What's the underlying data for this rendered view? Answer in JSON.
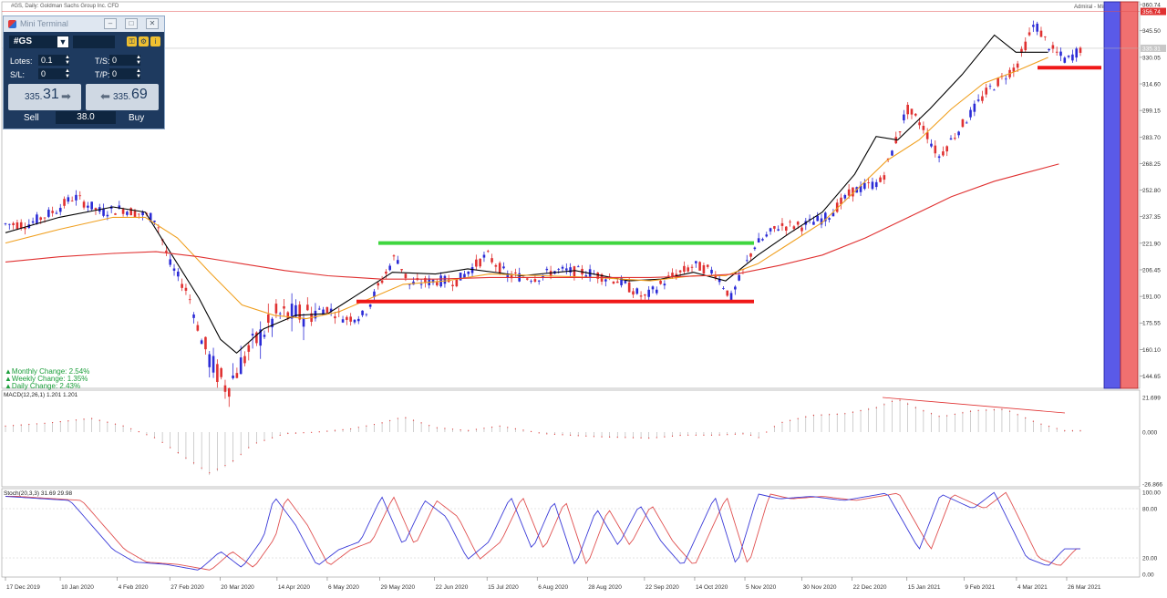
{
  "header": {
    "symbol_caption": "#GS, Daily:  Goldman Sachs Group Inc. CFD",
    "right_caption": "Admiral - Mini Terminal"
  },
  "mini_terminal": {
    "title": "Mini Terminal",
    "symbol": "#GS",
    "lots_label": "Lotes:",
    "lots_value": "0.1",
    "ts_label": "T/S:",
    "ts_value": "0",
    "sl_label": "S/L:",
    "sl_value": "0",
    "tp_label": "T/P:",
    "tp_value": "0",
    "sell_small": "335.",
    "sell_big": "31",
    "buy_small": "335.",
    "buy_big": "69",
    "sell_label": "Sell",
    "buy_label": "Buy",
    "volume": "38.0"
  },
  "changes": {
    "monthly": "▲Monthly Change: 2.54%",
    "weekly": "▲Weekly Change: 1.35%",
    "daily": "▲Daily Change: 2.43%"
  },
  "colors": {
    "bull": "#2b2bd6",
    "bear": "#e03131",
    "ma_fast": "#000000",
    "ma_mid": "#f0a020",
    "ma_slow": "#e03131",
    "resistance": "#3fd63f",
    "support": "#f01818",
    "stoch_main": "#3a3ad8",
    "stoch_signal": "#e05050",
    "band_blue": "#5a5ae8",
    "band_red": "#f07070"
  },
  "chart_data": [
    {
      "type": "candlestick",
      "symbol": "#GS",
      "timeframe": "Daily",
      "price_axis_ticks": [
        360.74,
        345.5,
        330.05,
        314.6,
        299.15,
        283.7,
        268.25,
        252.8,
        237.35,
        221.9,
        206.45,
        191.0,
        175.55,
        160.1,
        144.65
      ],
      "current_price": 335.31,
      "top_marker_price": 356.74,
      "x_tick_labels": [
        "17 Dec 2019",
        "10 Jan 2020",
        "4 Feb 2020",
        "27 Feb 2020",
        "20 Mar 2020",
        "14 Apr 2020",
        "6 May 2020",
        "29 May 2020",
        "22 Jun 2020",
        "15 Jul 2020",
        "6 Aug 2020",
        "28 Aug 2020",
        "22 Sep 2020",
        "14 Oct 2020",
        "5 Nov 2020",
        "30 Nov 2020",
        "22 Dec 2020",
        "15 Jan 2021",
        "9 Feb 2021",
        "4 Mar 2021",
        "26 Mar 2021"
      ],
      "close_path": [
        {
          "date": "2019-12-17",
          "close": 233
        },
        {
          "date": "2019-12-27",
          "close": 233
        },
        {
          "date": "2020-01-08",
          "close": 241
        },
        {
          "date": "2020-01-16",
          "close": 249
        },
        {
          "date": "2020-01-28",
          "close": 240
        },
        {
          "date": "2020-02-06",
          "close": 242
        },
        {
          "date": "2020-02-14",
          "close": 239
        },
        {
          "date": "2020-02-21",
          "close": 236
        },
        {
          "date": "2020-02-27",
          "close": 210
        },
        {
          "date": "2020-03-06",
          "close": 193
        },
        {
          "date": "2020-03-12",
          "close": 165
        },
        {
          "date": "2020-03-17",
          "close": 150
        },
        {
          "date": "2020-03-23",
          "close": 138
        },
        {
          "date": "2020-03-31",
          "close": 156
        },
        {
          "date": "2020-04-06",
          "close": 167
        },
        {
          "date": "2020-04-14",
          "close": 180
        },
        {
          "date": "2020-04-24",
          "close": 180
        },
        {
          "date": "2020-05-06",
          "close": 184
        },
        {
          "date": "2020-05-14",
          "close": 178
        },
        {
          "date": "2020-05-22",
          "close": 180
        },
        {
          "date": "2020-05-29",
          "close": 198
        },
        {
          "date": "2020-06-05",
          "close": 215
        },
        {
          "date": "2020-06-11",
          "close": 198
        },
        {
          "date": "2020-06-22",
          "close": 200
        },
        {
          "date": "2020-07-02",
          "close": 200
        },
        {
          "date": "2020-07-15",
          "close": 215
        },
        {
          "date": "2020-07-24",
          "close": 203
        },
        {
          "date": "2020-08-06",
          "close": 202
        },
        {
          "date": "2020-08-14",
          "close": 206
        },
        {
          "date": "2020-08-28",
          "close": 205
        },
        {
          "date": "2020-09-11",
          "close": 200
        },
        {
          "date": "2020-09-22",
          "close": 190
        },
        {
          "date": "2020-10-02",
          "close": 201
        },
        {
          "date": "2020-10-14",
          "close": 209
        },
        {
          "date": "2020-10-23",
          "close": 205
        },
        {
          "date": "2020-10-30",
          "close": 190
        },
        {
          "date": "2020-11-09",
          "close": 220
        },
        {
          "date": "2020-11-20",
          "close": 232
        },
        {
          "date": "2020-11-30",
          "close": 232
        },
        {
          "date": "2020-12-11",
          "close": 237
        },
        {
          "date": "2020-12-22",
          "close": 252
        },
        {
          "date": "2021-01-04",
          "close": 258
        },
        {
          "date": "2021-01-15",
          "close": 300
        },
        {
          "date": "2021-01-22",
          "close": 290
        },
        {
          "date": "2021-01-29",
          "close": 272
        },
        {
          "date": "2021-02-09",
          "close": 292
        },
        {
          "date": "2021-02-19",
          "close": 310
        },
        {
          "date": "2021-03-04",
          "close": 325
        },
        {
          "date": "2021-03-12",
          "close": 350
        },
        {
          "date": "2021-03-19",
          "close": 335
        },
        {
          "date": "2021-03-26",
          "close": 328
        },
        {
          "date": "2021-04-01",
          "close": 335
        }
      ],
      "moving_averages": [
        {
          "color": "#000000",
          "points": [
            [
              0,
              228
            ],
            [
              0.05,
              237
            ],
            [
              0.1,
              243
            ],
            [
              0.13,
              240
            ],
            [
              0.15,
              220
            ],
            [
              0.18,
              190
            ],
            [
              0.2,
              166
            ],
            [
              0.215,
              158
            ],
            [
              0.24,
              172
            ],
            [
              0.27,
              180
            ],
            [
              0.3,
              181
            ],
            [
              0.33,
              193
            ],
            [
              0.36,
              205
            ],
            [
              0.4,
              204
            ],
            [
              0.43,
              207
            ],
            [
              0.48,
              203
            ],
            [
              0.53,
              206
            ],
            [
              0.58,
              200
            ],
            [
              0.61,
              201
            ],
            [
              0.64,
              205
            ],
            [
              0.67,
              200
            ],
            [
              0.7,
              215
            ],
            [
              0.73,
              228
            ],
            [
              0.76,
              240
            ],
            [
              0.79,
              262
            ],
            [
              0.81,
              284
            ],
            [
              0.83,
              282
            ],
            [
              0.86,
              300
            ],
            [
              0.89,
              320
            ],
            [
              0.92,
              343
            ],
            [
              0.94,
              333
            ],
            [
              0.97,
              333
            ]
          ]
        },
        {
          "color": "#f0a020",
          "points": [
            [
              0,
              222
            ],
            [
              0.05,
              230
            ],
            [
              0.1,
              237
            ],
            [
              0.13,
              237
            ],
            [
              0.16,
              225
            ],
            [
              0.19,
              205
            ],
            [
              0.22,
              186
            ],
            [
              0.25,
              180
            ],
            [
              0.28,
              178
            ],
            [
              0.31,
              182
            ],
            [
              0.34,
              190
            ],
            [
              0.37,
              198
            ],
            [
              0.41,
              200
            ],
            [
              0.45,
              204
            ],
            [
              0.5,
              203
            ],
            [
              0.55,
              202
            ],
            [
              0.6,
              200
            ],
            [
              0.64,
              203
            ],
            [
              0.67,
              203
            ],
            [
              0.7,
              210
            ],
            [
              0.73,
              222
            ],
            [
              0.76,
              234
            ],
            [
              0.79,
              252
            ],
            [
              0.82,
              270
            ],
            [
              0.85,
              282
            ],
            [
              0.88,
              300
            ],
            [
              0.91,
              315
            ],
            [
              0.94,
              322
            ],
            [
              0.97,
              330
            ]
          ]
        },
        {
          "color": "#e03131",
          "points": [
            [
              0,
              211
            ],
            [
              0.05,
              214
            ],
            [
              0.1,
              216
            ],
            [
              0.14,
              217
            ],
            [
              0.18,
              214
            ],
            [
              0.22,
              210
            ],
            [
              0.26,
              206
            ],
            [
              0.3,
              203
            ],
            [
              0.35,
              201
            ],
            [
              0.4,
              201
            ],
            [
              0.45,
              202
            ],
            [
              0.5,
              202
            ],
            [
              0.55,
              202
            ],
            [
              0.6,
              202
            ],
            [
              0.65,
              203
            ],
            [
              0.68,
              204
            ],
            [
              0.72,
              209
            ],
            [
              0.76,
              215
            ],
            [
              0.8,
              225
            ],
            [
              0.84,
              237
            ],
            [
              0.88,
              249
            ],
            [
              0.92,
              258
            ],
            [
              0.95,
              263
            ],
            [
              0.98,
              268
            ]
          ]
        }
      ],
      "horizontal_levels": [
        {
          "label": "resistance",
          "price": 222,
          "x_from": "29 May 2020",
          "x_to": "5 Nov 2020"
        },
        {
          "label": "support",
          "price": 188,
          "x_from": "29 May 2020",
          "x_to": "5 Nov 2020"
        },
        {
          "label": "support",
          "price": 324,
          "x_from": "26 Mar 2021",
          "x_to": "end"
        }
      ]
    },
    {
      "type": "bar",
      "title": "MACD(12,26,1) 1.201 1.201",
      "axis_ticks": [
        21.699,
        0.0,
        -26.866
      ],
      "values_shape": "oscillates: ~+8 (Jan 2020), -26 (Mar 2020), +8 (Jun 2020), ~0 (Jul-Oct 2020), +16 (Dec 2020), +21.7 (mid Jan 2021), +14 (Mar 2021), ~+1 (Apr 2021)"
    },
    {
      "type": "line",
      "title": "Stoch(20,3,3) 31.69 29.98",
      "axis_ticks": [
        100.0,
        80.0,
        20.0,
        0.0
      ],
      "ylim": [
        0,
        100
      ],
      "series": [
        {
          "name": "",
          "last": 31.69
        },
        {
          "name": "",
          "last": 29.98
        }
      ]
    }
  ]
}
